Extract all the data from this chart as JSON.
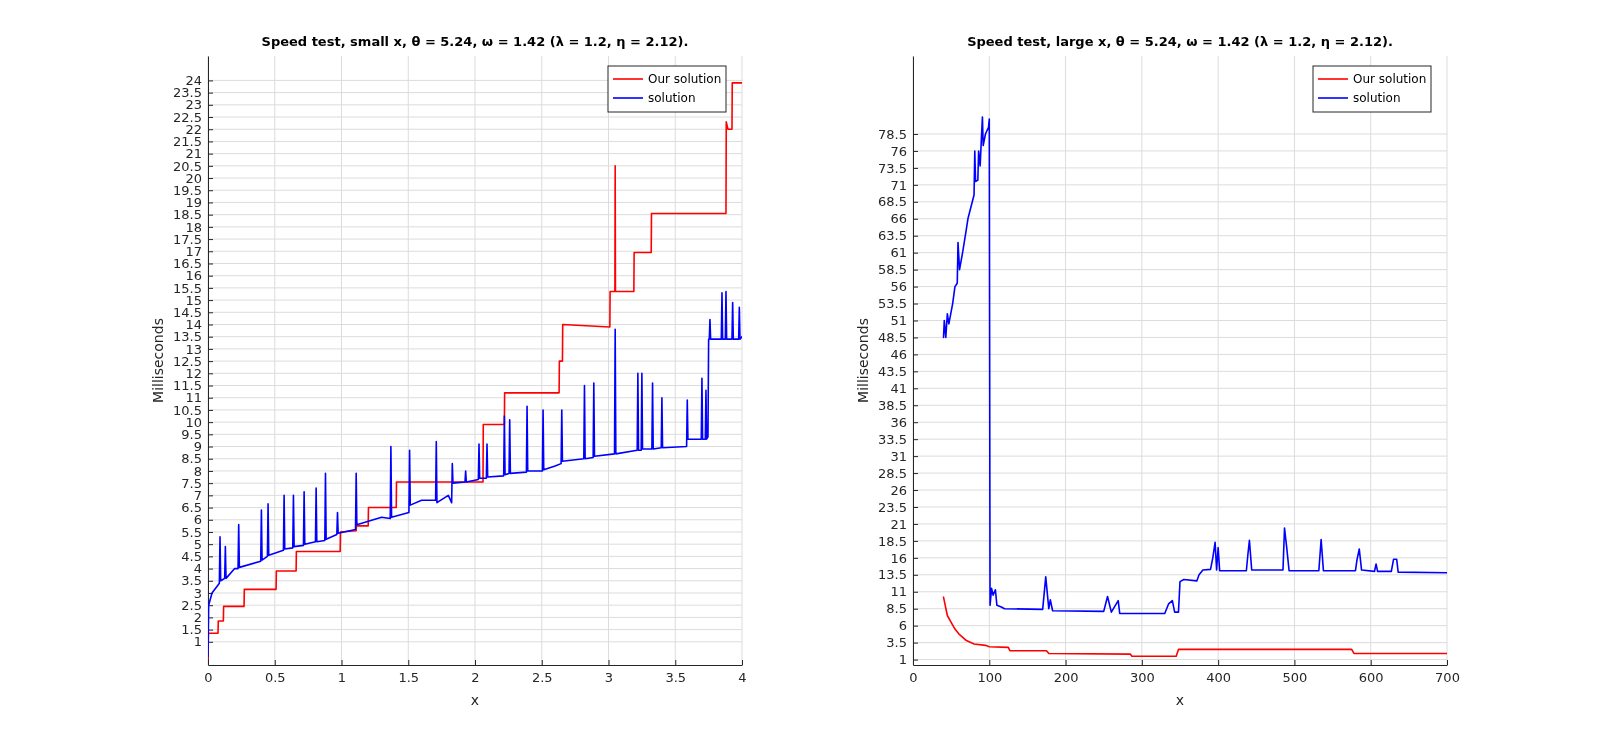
{
  "chart_data": [
    {
      "type": "line",
      "title": "Speed test, small x, θ = 5.24, ω = 1.42 (λ = 1.2, η = 2.12).",
      "xlabel": "x",
      "ylabel": "Milliseconds",
      "xlim": [
        0,
        4
      ],
      "xticks": [
        0,
        0.5,
        1,
        1.5,
        2,
        2.5,
        3,
        3.5,
        4
      ],
      "ylim": [
        0.05,
        25
      ],
      "yticks": [
        1,
        1.5,
        2,
        2.5,
        3,
        3.5,
        4,
        4.5,
        5,
        5.5,
        6,
        6.5,
        7,
        7.5,
        8,
        8.5,
        9,
        9.5,
        10,
        10.5,
        11,
        11.5,
        12,
        12.5,
        13,
        13.5,
        14,
        14.5,
        15,
        15.5,
        16,
        16.5,
        17,
        17.5,
        18,
        18.5,
        19,
        19.5,
        20,
        20.5,
        21,
        21.5,
        22,
        22.5,
        23,
        23.5,
        24
      ],
      "grid": true,
      "legend": "top right",
      "line_style": "solid",
      "series": [
        {
          "name": "Our solution",
          "color": "#ff0000",
          "x": [
            0,
            0.003,
            0.075,
            0.077,
            0.115,
            0.117,
            0.27,
            0.272,
            0.51,
            0.512,
            0.66,
            0.662,
            0.99,
            0.992,
            1.11,
            1.112,
            1.2,
            1.202,
            1.41,
            1.412,
            2.06,
            2.062,
            2.22,
            2.222,
            2.63,
            2.632,
            2.655,
            2.657,
            3.01,
            3.012,
            3.048,
            3.05,
            3.052,
            3.19,
            3.192,
            3.32,
            3.322,
            3.88,
            3.882,
            3.895,
            3.925,
            3.927,
            4.0
          ],
          "values": [
            0.3,
            1.35,
            1.35,
            1.85,
            1.85,
            2.45,
            2.45,
            3.15,
            3.15,
            3.9,
            3.9,
            4.7,
            4.7,
            5.5,
            5.55,
            5.75,
            5.75,
            6.5,
            6.5,
            7.55,
            7.55,
            9.9,
            9.9,
            11.2,
            11.2,
            12.5,
            12.5,
            14.0,
            13.9,
            15.35,
            15.35,
            20.5,
            15.35,
            15.35,
            16.95,
            16.95,
            18.55,
            18.55,
            22.3,
            22.0,
            22.0,
            23.9,
            23.9
          ]
        },
        {
          "name": "solution",
          "color": "#0000ff",
          "x": [
            0,
            0.005,
            0.03,
            0.085,
            0.09,
            0.095,
            0.125,
            0.13,
            0.135,
            0.2,
            0.225,
            0.23,
            0.235,
            0.395,
            0.4,
            0.405,
            0.445,
            0.45,
            0.455,
            0.565,
            0.57,
            0.575,
            0.635,
            0.64,
            0.645,
            0.715,
            0.72,
            0.725,
            0.805,
            0.81,
            0.815,
            0.875,
            0.88,
            0.885,
            0.965,
            0.97,
            0.975,
            1.105,
            1.11,
            1.115,
            1.3,
            1.365,
            1.37,
            1.375,
            1.505,
            1.51,
            1.515,
            1.6,
            1.705,
            1.71,
            1.715,
            1.8,
            1.825,
            1.83,
            1.835,
            1.925,
            1.93,
            1.935,
            2.025,
            2.03,
            2.035,
            2.085,
            2.09,
            2.095,
            2.215,
            2.22,
            2.225,
            2.255,
            2.26,
            2.265,
            2.385,
            2.39,
            2.395,
            2.505,
            2.51,
            2.515,
            2.6,
            2.645,
            2.65,
            2.655,
            2.815,
            2.82,
            2.825,
            2.885,
            2.89,
            2.895,
            3.045,
            3.05,
            3.055,
            3.215,
            3.22,
            3.225,
            3.245,
            3.25,
            3.255,
            3.325,
            3.33,
            3.335,
            3.395,
            3.4,
            3.405,
            3.585,
            3.59,
            3.595,
            3.695,
            3.7,
            3.705,
            3.725,
            3.73,
            3.735,
            3.745,
            3.75,
            3.755,
            3.76,
            3.765,
            3.845,
            3.85,
            3.855,
            3.875,
            3.88,
            3.885,
            3.925,
            3.93,
            3.935,
            3.975,
            3.98,
            3.985,
            4.0
          ],
          "values": [
            0.4,
            2.5,
            3.0,
            3.4,
            5.3,
            3.5,
            3.6,
            4.9,
            3.6,
            4.0,
            4.0,
            5.8,
            4.05,
            4.3,
            6.4,
            4.35,
            4.5,
            6.65,
            4.55,
            4.75,
            7.0,
            4.8,
            4.85,
            7.0,
            4.9,
            4.95,
            7.15,
            5.0,
            5.1,
            7.3,
            5.1,
            5.15,
            7.9,
            5.2,
            5.4,
            6.3,
            5.45,
            5.6,
            7.9,
            5.8,
            6.1,
            6.05,
            9.0,
            6.1,
            6.3,
            8.85,
            6.6,
            6.8,
            6.8,
            9.2,
            6.7,
            7.0,
            6.7,
            8.3,
            7.5,
            7.55,
            8.0,
            7.55,
            7.65,
            9.1,
            7.7,
            7.7,
            9.1,
            7.75,
            7.8,
            10.25,
            7.85,
            7.9,
            10.1,
            7.9,
            7.95,
            10.65,
            8.0,
            8.0,
            10.5,
            8.05,
            8.2,
            8.3,
            10.5,
            8.4,
            8.5,
            11.5,
            8.5,
            8.55,
            11.6,
            8.6,
            8.7,
            13.8,
            8.7,
            8.85,
            12.0,
            8.85,
            8.85,
            12.0,
            8.9,
            8.9,
            11.6,
            8.9,
            8.95,
            11.0,
            8.95,
            9.0,
            10.9,
            9.3,
            9.3,
            11.8,
            9.3,
            9.3,
            11.3,
            9.3,
            9.4,
            13.4,
            13.4,
            14.2,
            13.4,
            13.4,
            15.3,
            13.4,
            13.4,
            15.35,
            13.4,
            13.4,
            14.9,
            13.4,
            13.4,
            14.7,
            13.4,
            13.5
          ]
        }
      ]
    },
    {
      "type": "line",
      "title": "Speed test, large x, θ = 5.24, ω = 1.42 (λ = 1.2, η = 2.12).",
      "xlabel": "x",
      "ylabel": "Milliseconds",
      "xlim": [
        0,
        700
      ],
      "xticks": [
        0,
        100,
        200,
        300,
        400,
        500,
        600,
        700
      ],
      "ylim": [
        0.2,
        90
      ],
      "yticks": [
        1,
        3.5,
        6,
        8.5,
        11,
        13.5,
        16,
        18.5,
        21,
        23.5,
        26,
        28.5,
        31,
        33.5,
        36,
        38.5,
        41,
        43.5,
        46,
        48.5,
        51,
        53.5,
        56,
        58.5,
        61,
        63.5,
        66,
        68.5,
        71,
        73.5,
        76,
        78.5
      ],
      "grid": true,
      "legend": "top right",
      "line_style": "solid",
      "series": [
        {
          "name": "Our solution",
          "color": "#ff0000",
          "x": [
            40,
            45,
            50,
            55,
            60,
            70,
            80,
            95,
            100,
            125,
            127,
            175,
            178,
            285,
            287,
            345,
            348,
            575,
            578,
            700
          ],
          "values": [
            10.2,
            7.5,
            6.5,
            5.5,
            4.8,
            3.8,
            3.3,
            3.1,
            2.9,
            2.8,
            2.3,
            2.3,
            1.9,
            1.8,
            1.5,
            1.5,
            2.5,
            2.5,
            1.9,
            1.9
          ]
        },
        {
          "name": "solution",
          "color": "#0000ff",
          "x": [
            40,
            41,
            43,
            45,
            47,
            52,
            55,
            58,
            59,
            61,
            65,
            70,
            72,
            80,
            81,
            82,
            85,
            86,
            88,
            91,
            92,
            95,
            99,
            100,
            101,
            103,
            105,
            108,
            110,
            115,
            120,
            170,
            174,
            178,
            180,
            183,
            250,
            255,
            260,
            269,
            271,
            330,
            335,
            340,
            343,
            348,
            350,
            355,
            372,
            375,
            380,
            390,
            393,
            396,
            398,
            400,
            402,
            437,
            439,
            441,
            444,
            485,
            487,
            490,
            493,
            532,
            535,
            538,
            580,
            582,
            585,
            588,
            605,
            607,
            609,
            627,
            630,
            634,
            636,
            700
          ],
          "values": [
            48.5,
            51,
            48.5,
            52,
            50.5,
            53.5,
            56,
            56.5,
            62.5,
            58.5,
            61,
            64.5,
            66,
            69.5,
            76,
            71.5,
            71.7,
            76,
            73.8,
            81,
            76.8,
            78.5,
            79.5,
            80.7,
            9,
            11.5,
            10.5,
            11.3,
            9.0,
            8.8,
            8.5,
            8.4,
            13.2,
            8.5,
            9.8,
            8.2,
            8.1,
            10.3,
            8.0,
            9.7,
            7.8,
            7.8,
            9.2,
            9.7,
            8.0,
            8.0,
            12.5,
            12.8,
            12.6,
            13.5,
            14.2,
            14.3,
            16,
            18.3,
            14.2,
            17.5,
            14.1,
            14.1,
            16.5,
            18.6,
            14.2,
            14.2,
            20.4,
            17.4,
            14.1,
            14.1,
            18.7,
            14.1,
            14.1,
            15.7,
            17.3,
            14.2,
            14.0,
            15.1,
            14.0,
            14.0,
            15.8,
            15.8,
            13.9,
            13.8
          ]
        }
      ]
    }
  ]
}
